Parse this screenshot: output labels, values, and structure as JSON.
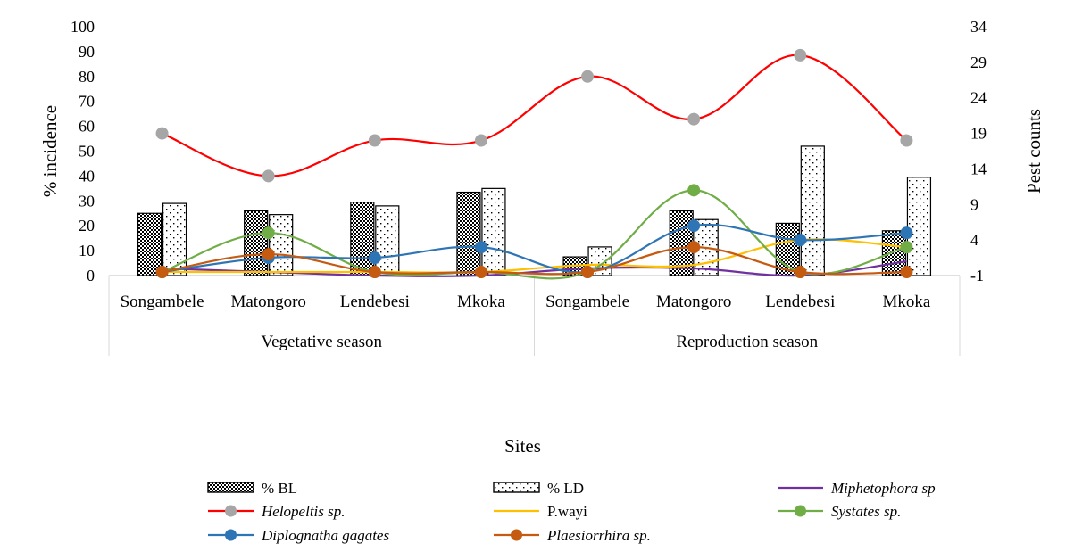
{
  "chart_data": {
    "type": "bar",
    "categories": [
      "Songambele",
      "Matongoro",
      "Lendebesi",
      "Mkoka",
      "Songambele",
      "Matongoro",
      "Lendebesi",
      "Mkoka"
    ],
    "groups": [
      {
        "label": "Vegetative season",
        "start": 0,
        "end": 3
      },
      {
        "label": "Reproduction season",
        "start": 4,
        "end": 7
      }
    ],
    "xlabel": "Sites",
    "ylabel": "% incidence",
    "y2label": "Pest counts",
    "ylim": [
      0,
      100
    ],
    "yticks": [
      0,
      10,
      20,
      30,
      40,
      50,
      60,
      70,
      80,
      90,
      100
    ],
    "y2lim": [
      -1,
      34
    ],
    "y2ticks": [
      -1,
      4,
      9,
      14,
      19,
      24,
      29,
      34
    ],
    "bar_series": [
      {
        "name": "% BL",
        "axis": "left",
        "pattern": "dense",
        "values": [
          25,
          26,
          29.5,
          33.5,
          7.5,
          26,
          21,
          18
        ]
      },
      {
        "name": "% LD",
        "axis": "left",
        "pattern": "sparse",
        "values": [
          29,
          24.5,
          28,
          35,
          11.5,
          22.5,
          52,
          39.5
        ]
      }
    ],
    "line_series": [
      {
        "name": "Miphetophora sp",
        "italic": true,
        "axis": "right",
        "color": "#7030a0",
        "marker": "none",
        "values": [
          0,
          -0.5,
          -1,
          -1,
          0,
          0,
          -1,
          1
        ]
      },
      {
        "name": "Helopeltis sp.",
        "italic": true,
        "axis": "right",
        "color": "#ff0000",
        "marker": "#a6a6a6",
        "values": [
          19,
          13,
          18,
          18,
          27,
          21,
          30,
          18
        ]
      },
      {
        "name": "P.wayi",
        "italic": false,
        "axis": "right",
        "color": "#ffc000",
        "marker": "none",
        "values": [
          -0.5,
          -0.5,
          -0.5,
          -0.5,
          0.5,
          0.5,
          4,
          3
        ]
      },
      {
        "name": "Systates sp.",
        "italic": true,
        "axis": "right",
        "color": "#70ad47",
        "marker": "#70ad47",
        "values": [
          -0.5,
          5,
          -0.5,
          -0.5,
          -0.5,
          11,
          -0.5,
          3
        ]
      },
      {
        "name": "Diplognatha gagates",
        "italic": true,
        "axis": "right",
        "color": "#2e75b6",
        "marker": "#2e75b6",
        "values": [
          -0.5,
          1.5,
          1.5,
          3,
          -0.5,
          6,
          4,
          5
        ]
      },
      {
        "name": "Plaesiorrhira sp.",
        "italic": true,
        "axis": "right",
        "color": "#c55a11",
        "marker": "#c55a11",
        "values": [
          -0.5,
          2,
          -0.5,
          -0.5,
          -0.5,
          3,
          -0.5,
          -0.5
        ]
      }
    ],
    "legend": {
      "position": "bottom",
      "rows": [
        [
          "% BL",
          "% LD",
          "Miphetophora sp"
        ],
        [
          "Helopeltis sp.",
          "P.wayi",
          "Systates sp."
        ],
        [
          "Diplognatha gagates",
          "Plaesiorrhira sp."
        ]
      ]
    },
    "grid": false
  }
}
